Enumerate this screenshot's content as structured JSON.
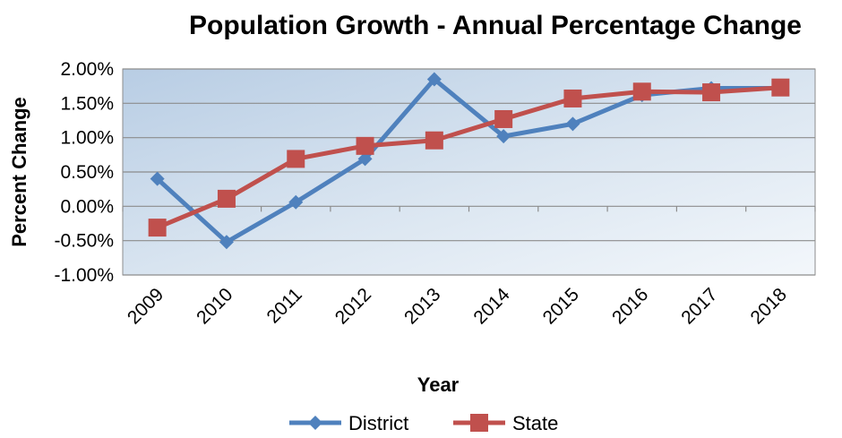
{
  "chart_data": {
    "type": "line",
    "title": "Population Growth - Annual Percentage Change",
    "xlabel": "Year",
    "ylabel": "Percent Change",
    "categories": [
      "2009",
      "2010",
      "2011",
      "2012",
      "2013",
      "2014",
      "2015",
      "2016",
      "2017",
      "2018"
    ],
    "series": [
      {
        "name": "District",
        "color": "#4f81bd",
        "marker": "diamond",
        "values": [
          0.4,
          -0.52,
          0.06,
          0.69,
          1.85,
          1.02,
          1.2,
          1.62,
          1.72,
          1.72
        ]
      },
      {
        "name": "State",
        "color": "#c0504d",
        "marker": "square",
        "values": [
          -0.31,
          0.11,
          0.69,
          0.88,
          0.96,
          1.27,
          1.57,
          1.67,
          1.66,
          1.73
        ]
      }
    ],
    "ylim": [
      -1.0,
      2.0
    ],
    "yticks": [
      "2.00%",
      "1.50%",
      "1.00%",
      "0.50%",
      "0.00%",
      "-0.50%",
      "-1.00%"
    ],
    "grid": true,
    "legend": "bottom"
  }
}
